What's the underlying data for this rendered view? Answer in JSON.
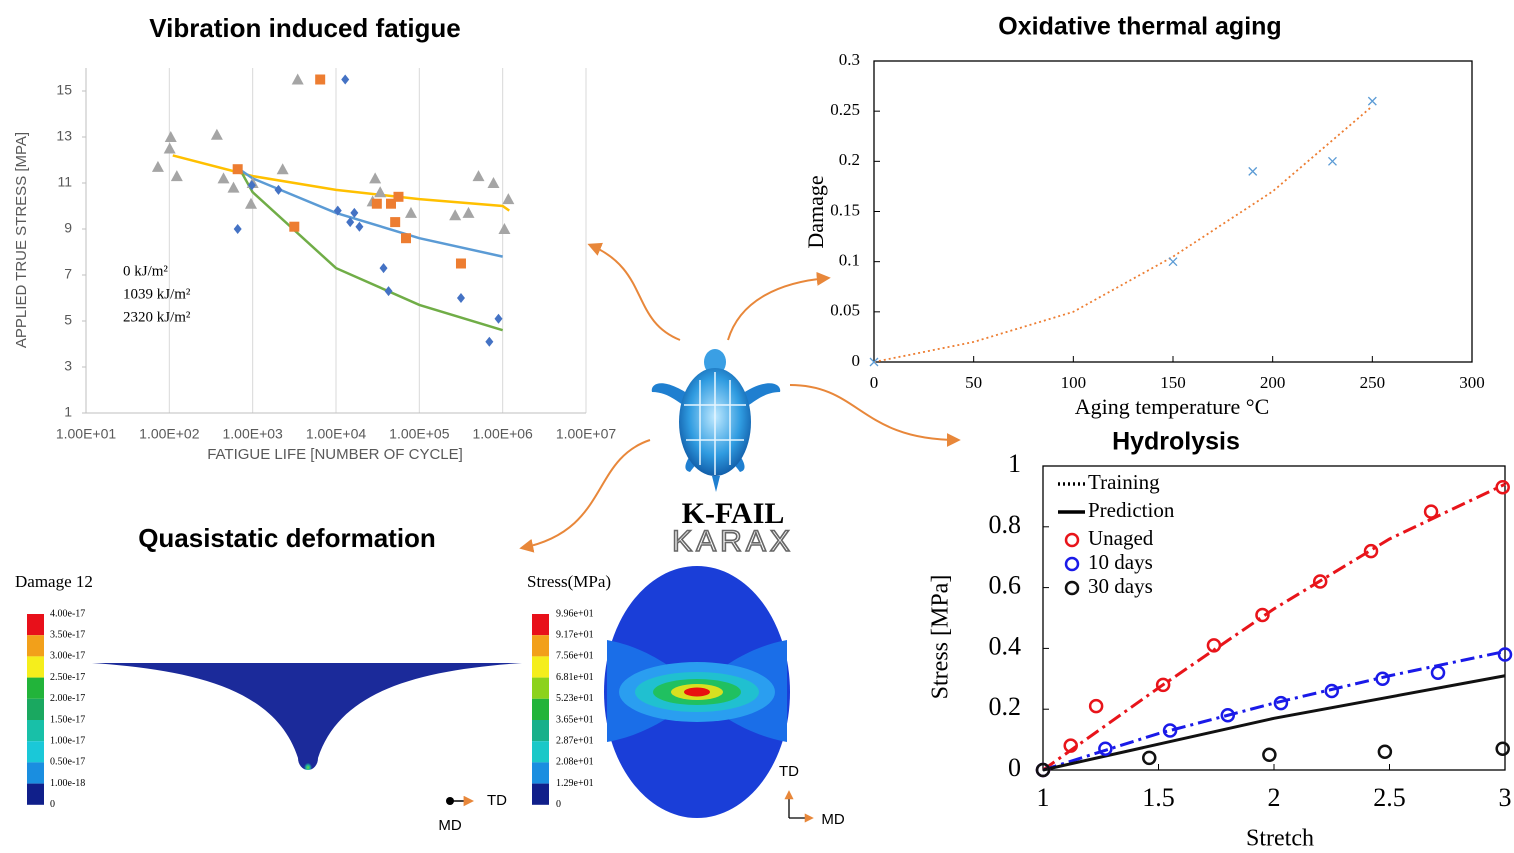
{
  "chart_data": [
    {
      "type": "scatter",
      "title": "Vibration induced fatigue",
      "x_label": "FATIGUE LIFE  [NUMBER OF CYCLE]",
      "y_label": "APPLIED TRUE STRESS [MPA]",
      "log_x": true,
      "grid": true,
      "legend": "center left",
      "xlim": [
        10,
        10000000
      ],
      "xticks": [
        {
          "value": 10,
          "label": "1.00E+01"
        },
        {
          "value": 100,
          "label": "1.00E+02"
        },
        {
          "value": 1000,
          "label": "1.00E+03"
        },
        {
          "value": 10000,
          "label": "1.00E+04"
        },
        {
          "value": 100000,
          "label": "1.00E+05"
        },
        {
          "value": 1000000,
          "label": "1.00E+06"
        },
        {
          "value": 10000000,
          "label": "1.00E+07"
        }
      ],
      "ylim": [
        1,
        16
      ],
      "yticks": [
        1,
        3,
        5,
        7,
        9,
        11,
        13,
        15
      ],
      "series": [
        {
          "name": "0 kJ/m²",
          "color": "#a5a5a5",
          "marker": "triangle",
          "x": [
            73,
            104,
            101,
            123,
            372,
            447,
            589,
            955,
            1000,
            2290,
            3470,
            29500,
            33900,
            27500,
            79400,
            269000,
            389000,
            513000,
            776000,
            1050000,
            1170000
          ],
          "values": [
            11.7,
            13.0,
            12.5,
            11.3,
            13.1,
            11.2,
            10.8,
            10.1,
            11.0,
            11.6,
            15.5,
            11.2,
            10.6,
            10.2,
            9.7,
            9.6,
            9.7,
            11.3,
            11.0,
            9.0,
            10.3
          ]
        },
        {
          "name": "1039 kJ/m²",
          "color": "#ed7d31",
          "marker": "square",
          "x": [
            6460,
            661,
            3160,
            30900,
            45700,
            56200,
            51300,
            69200,
            316000
          ],
          "values": [
            15.5,
            11.6,
            9.1,
            10.1,
            10.1,
            10.4,
            9.3,
            8.6,
            7.5
          ]
        },
        {
          "name": "2320 kJ/m²",
          "color": "#4472c4",
          "marker": "diamond",
          "x": [
            12900,
            661,
            977,
            2040,
            10500,
            16600,
            14800,
            19100,
            37200,
            42700,
            316000,
            692000,
            891000
          ],
          "values": [
            15.5,
            9.0,
            10.9,
            10.7,
            9.8,
            9.7,
            9.3,
            9.1,
            7.3,
            6.3,
            6.0,
            4.1,
            5.1
          ]
        }
      ],
      "trendlines": [
        {
          "color": "#ffc000",
          "style": "solid",
          "x": [
            110,
            1000,
            10000,
            100000,
            1000000,
            1200000
          ],
          "values": [
            12.2,
            11.3,
            10.7,
            10.3,
            10.0,
            9.8
          ]
        },
        {
          "color": "#5b9bd5",
          "style": "solid",
          "x": [
            690,
            1000,
            10000,
            100000,
            1000000
          ],
          "values": [
            11.6,
            11.2,
            9.7,
            8.6,
            7.8
          ]
        },
        {
          "color": "#70ad47",
          "style": "solid",
          "x": [
            700,
            1000,
            10000,
            100000,
            1000000
          ],
          "values": [
            11.6,
            10.6,
            7.3,
            5.7,
            4.6
          ]
        }
      ]
    },
    {
      "type": "scatter",
      "title": "Oxidative thermal aging",
      "x_label": "Aging  temperature °C",
      "y_label": "Damage",
      "xlim": [
        0,
        300
      ],
      "xticks": [
        0,
        50,
        100,
        150,
        200,
        250,
        300
      ],
      "ylim": [
        0,
        0.3
      ],
      "yticks": [
        0,
        0.05,
        0.1,
        0.15,
        0.2,
        0.25,
        0.3
      ],
      "series": [
        {
          "color": "#5b9bd5",
          "marker": "x",
          "x": [
            0,
            150,
            190,
            230,
            250
          ],
          "values": [
            0,
            0.1,
            0.19,
            0.2,
            0.26
          ]
        }
      ],
      "trendlines": [
        {
          "color": "#ed7d31",
          "style": "dotted",
          "x": [
            0,
            50,
            100,
            150,
            200,
            250
          ],
          "values": [
            0,
            0.02,
            0.05,
            0.105,
            0.17,
            0.255
          ]
        }
      ]
    },
    {
      "type": "scatter",
      "title": "Hydrolysis",
      "x_label": "Stretch",
      "y_label": "Stress [MPa]",
      "legend": "upper left",
      "xlim": [
        1,
        3
      ],
      "xticks": [
        1,
        1.5,
        2,
        2.5,
        3
      ],
      "ylim": [
        0,
        1
      ],
      "yticks": [
        0,
        0.2,
        0.4,
        0.6,
        0.8,
        1
      ],
      "legend_lines": [
        {
          "name": "Training",
          "style": "dotted"
        },
        {
          "name": "Prediction",
          "style": "solid"
        }
      ],
      "series": [
        {
          "name": "Unaged",
          "color": "#e8141a",
          "marker": "circle",
          "x": [
            1,
            1.12,
            1.23,
            1.52,
            1.74,
            1.95,
            2.2,
            2.42,
            2.68,
            2.99
          ],
          "values": [
            0,
            0.08,
            0.21,
            0.28,
            0.41,
            0.51,
            0.62,
            0.72,
            0.85,
            0.93
          ]
        },
        {
          "name": "10 days",
          "color": "#1a1ae8",
          "marker": "circle",
          "x": [
            1,
            1.27,
            1.55,
            1.8,
            2.03,
            2.25,
            2.47,
            2.71,
            3.0
          ],
          "values": [
            0,
            0.07,
            0.13,
            0.18,
            0.22,
            0.26,
            0.3,
            0.32,
            0.38
          ]
        },
        {
          "name": "30 days",
          "color": "#111111",
          "marker": "circle",
          "x": [
            1,
            1.46,
            1.98,
            2.48,
            2.99
          ],
          "values": [
            0,
            0.04,
            0.05,
            0.06,
            0.07
          ]
        }
      ],
      "trendlines": [
        {
          "color": "#e8141a",
          "style": "dashdot",
          "x": [
            1,
            1.5,
            2,
            2.5,
            3
          ],
          "values": [
            0,
            0.27,
            0.53,
            0.76,
            0.94
          ]
        },
        {
          "color": "#1a1ae8",
          "style": "dashdot",
          "x": [
            1,
            1.5,
            2,
            2.5,
            3
          ],
          "values": [
            0,
            0.12,
            0.22,
            0.31,
            0.39
          ]
        },
        {
          "color": "#111111",
          "style": "solid",
          "x": [
            1,
            2,
            3
          ],
          "values": [
            0,
            0.17,
            0.31
          ]
        }
      ]
    }
  ],
  "quasistatic": {
    "title": "Quasistatic deformation",
    "damage_colorbar": {
      "title": "Damage 12",
      "labels": [
        "4.00e-17",
        "3.50e-17",
        "3.00e-17",
        "2.50e-17",
        "2.00e-17",
        "1.50e-17",
        "1.00e-17",
        "0.50e-17",
        "1.00e-18",
        "0"
      ],
      "colors": [
        "#e8101a",
        "#f2a01a",
        "#f5ee1c",
        "#22b43a",
        "#1aa860",
        "#18c0a8",
        "#1ac8d8",
        "#1a8ee0",
        "#101f8a"
      ]
    },
    "stress_colorbar": {
      "title": "Stress(MPa)",
      "labels": [
        "9.96e+01",
        "9.17e+01",
        "7.56e+01",
        "6.81e+01",
        "5.23e+01",
        "3.65e+01",
        "2.87e+01",
        "2.08e+01",
        "1.29e+01",
        "0"
      ],
      "colors": [
        "#e8101a",
        "#f2a01a",
        "#f5ee1c",
        "#8cd21c",
        "#22b43a",
        "#18b08a",
        "#1ac8c8",
        "#1a8ee0",
        "#101f8a"
      ]
    },
    "td": "TD",
    "md": "MD"
  },
  "logo": {
    "name": "K-FAIL",
    "brand": "KARAX"
  }
}
